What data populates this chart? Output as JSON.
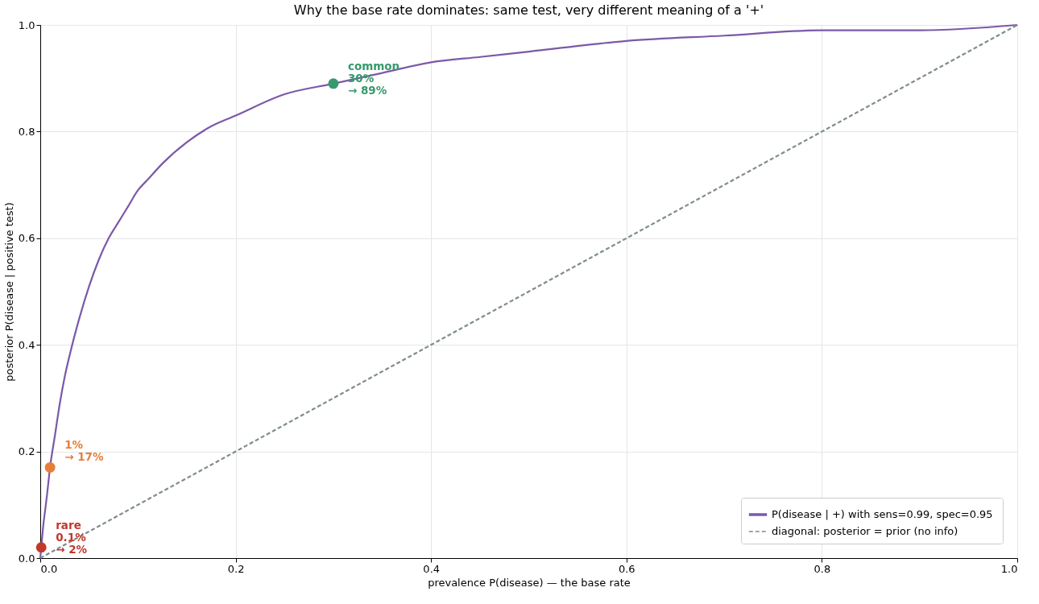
{
  "chart_data": {
    "type": "line",
    "title": "Why the base rate dominates: same test, very different meaning of a '+'",
    "xlabel": "prevalence  P(disease)  — the base rate",
    "ylabel": "posterior  P(disease | positive test)",
    "xlim": [
      0,
      1
    ],
    "ylim": [
      0,
      1
    ],
    "xticks": [
      {
        "value": 0,
        "label": "0.0"
      },
      0.2,
      0.4,
      0.6,
      0.8,
      {
        "value": 1,
        "label": "1.0"
      }
    ],
    "yticks": [
      {
        "value": 0,
        "label": "0.0"
      },
      0.2,
      0.4,
      0.6,
      0.8,
      {
        "value": 1,
        "label": "1.0"
      }
    ],
    "grid": true,
    "legend": "bottom right",
    "series": [
      {
        "name": "P(disease | +)  with sens=0.99, spec=0.95",
        "color": "#7b59a8",
        "line_style": "solid",
        "x": [
          0,
          0.001,
          0.002,
          0.003,
          0.005,
          0.007,
          0.01,
          0.015,
          0.02,
          0.025,
          0.03,
          0.04,
          0.05,
          0.06,
          0.07,
          0.08,
          0.09,
          0.1,
          0.11,
          0.125,
          0.15,
          0.175,
          0.2,
          0.25,
          0.3,
          0.35,
          0.4,
          0.45,
          0.5,
          0.6,
          0.7,
          0.8,
          0.9,
          1.0
        ],
        "values": [
          0,
          0.02,
          0.04,
          0.06,
          0.09,
          0.12,
          0.17,
          0.23,
          0.29,
          0.34,
          0.38,
          0.45,
          0.51,
          0.56,
          0.6,
          0.63,
          0.66,
          0.69,
          0.71,
          0.74,
          0.78,
          0.81,
          0.83,
          0.87,
          0.89,
          0.91,
          0.93,
          0.94,
          0.95,
          0.97,
          0.98,
          0.99,
          0.99,
          1.0
        ]
      },
      {
        "name": "diagonal: posterior = prior (no info)",
        "color": "#7f8c8d",
        "line_style": "dashed",
        "x": [
          0,
          1
        ],
        "values": [
          0,
          1
        ]
      },
      {
        "type": "scatter",
        "marker": "circle",
        "color": "#c0392b",
        "x": [
          0.001
        ],
        "values": [
          0.02
        ]
      },
      {
        "type": "scatter",
        "marker": "circle",
        "color": "#e67e3a",
        "x": [
          0.01
        ],
        "values": [
          0.17
        ]
      },
      {
        "type": "scatter",
        "marker": "circle",
        "color": "#379a6c",
        "x": [
          0.3
        ],
        "values": [
          0.89
        ]
      }
    ],
    "annotations": [
      {
        "text": "rare\n0.1%\n→ 2%",
        "x": 0.001,
        "y": 0.02
      },
      {
        "text": "1%\n→ 17%",
        "x": 0.01,
        "y": 0.17
      },
      {
        "text": "common\n30%\n→ 89%",
        "x": 0.3,
        "y": 0.89
      }
    ]
  }
}
